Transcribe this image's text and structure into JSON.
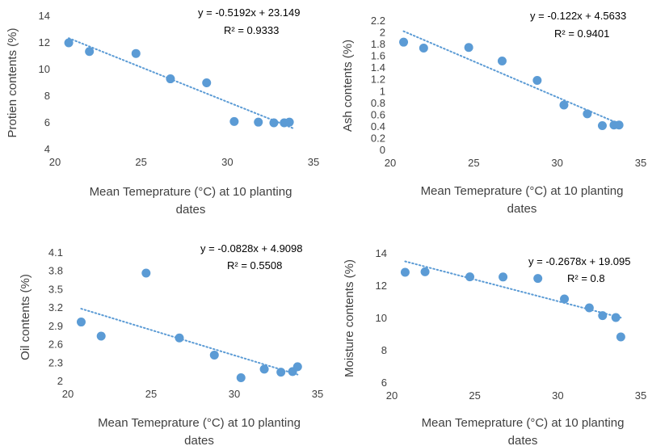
{
  "chart_data": [
    {
      "type": "scatter",
      "xlabel_line1": "Mean Temeprature (°C) at 10 planting",
      "xlabel_line2": "dates",
      "ylabel": "Protien contents (%)",
      "xlim": [
        20,
        35
      ],
      "ylim": [
        4,
        14
      ],
      "xticks": [
        "20",
        "25",
        "30",
        "35"
      ],
      "yticks": [
        "4",
        "6",
        "8",
        "10",
        "12",
        "14"
      ],
      "equation": "y = -0.5192x + 23.149",
      "r2": "R² = 0.9333",
      "trendline": {
        "slope": -0.5192,
        "intercept": 23.149,
        "x_from": 20.8,
        "x_to": 33.8
      },
      "x": [
        20.8,
        22.0,
        24.7,
        26.7,
        28.8,
        30.4,
        31.8,
        32.7,
        33.3,
        33.6
      ],
      "y": [
        12.0,
        11.35,
        11.2,
        9.3,
        9.0,
        6.1,
        6.05,
        6.0,
        6.0,
        6.05
      ],
      "marker_color": "#5B9BD5",
      "trend_color": "#5B9BD5"
    },
    {
      "type": "scatter",
      "xlabel_line1": "Mean Temeprature (°C) at 10 planting",
      "xlabel_line2": "dates",
      "ylabel": "Ash contents (%)",
      "xlim": [
        20,
        35
      ],
      "ylim": [
        0,
        2.2
      ],
      "xticks": [
        "20",
        "25",
        "30",
        "35"
      ],
      "yticks": [
        "0",
        "0.2",
        "0.4",
        "0.6",
        "0.8",
        "1",
        "1.2",
        "1.4",
        "1.6",
        "1.8",
        "2",
        "2.2"
      ],
      "equation": "y = -0.122x + 4.5633",
      "r2": "R² = 0.9401",
      "trendline": {
        "slope": -0.122,
        "intercept": 4.5633,
        "x_from": 20.8,
        "x_to": 33.8
      },
      "x": [
        20.8,
        22.0,
        24.7,
        26.7,
        28.8,
        30.4,
        31.8,
        32.7,
        33.4,
        33.7
      ],
      "y": [
        1.84,
        1.74,
        1.75,
        1.52,
        1.19,
        0.77,
        0.62,
        0.42,
        0.43,
        0.43
      ],
      "marker_color": "#5B9BD5",
      "trend_color": "#5B9BD5"
    },
    {
      "type": "scatter",
      "xlabel_line1": "Mean Temeprature (°C) at 10 planting",
      "xlabel_line2": "dates",
      "ylabel": "Oil contents (%)",
      "xlim": [
        20,
        35
      ],
      "ylim": [
        2,
        4.1
      ],
      "xticks": [
        "20",
        "25",
        "30",
        "35"
      ],
      "yticks": [
        "2",
        "2.3",
        "2.6",
        "2.9",
        "3.2",
        "3.5",
        "3.8",
        "4.1"
      ],
      "equation": "y = -0.0828x + 4.9098",
      "r2": "R² = 0.5508",
      "trendline": {
        "slope": -0.0828,
        "intercept": 4.9098,
        "x_from": 20.8,
        "x_to": 33.8
      },
      "x": [
        20.8,
        22.0,
        24.7,
        26.7,
        28.8,
        30.4,
        31.8,
        32.8,
        33.5,
        33.8
      ],
      "y": [
        2.97,
        2.74,
        3.77,
        2.71,
        2.43,
        2.06,
        2.2,
        2.15,
        2.16,
        2.24
      ],
      "marker_color": "#5B9BD5",
      "trend_color": "#5B9BD5"
    },
    {
      "type": "scatter",
      "xlabel_line1": "Mean Temeprature (°C) at 10 planting",
      "xlabel_line2": "dates",
      "ylabel": "Moisture contents (%)",
      "xlim": [
        20,
        35
      ],
      "ylim": [
        6,
        14
      ],
      "xticks": [
        "20",
        "25",
        "30",
        "35"
      ],
      "yticks": [
        "6",
        "8",
        "10",
        "12",
        "14"
      ],
      "equation": "y = -0.2678x + 19.095",
      "r2": "R² = 0.8",
      "trendline": {
        "slope": -0.2678,
        "intercept": 19.095,
        "x_from": 20.8,
        "x_to": 33.8
      },
      "x": [
        20.8,
        22.0,
        24.7,
        26.7,
        28.8,
        30.4,
        31.9,
        32.7,
        33.5,
        33.8
      ],
      "y": [
        12.85,
        12.88,
        12.57,
        12.56,
        12.47,
        11.2,
        10.65,
        10.17,
        10.05,
        8.85
      ],
      "marker_color": "#5B9BD5",
      "trend_color": "#5B9BD5"
    }
  ]
}
